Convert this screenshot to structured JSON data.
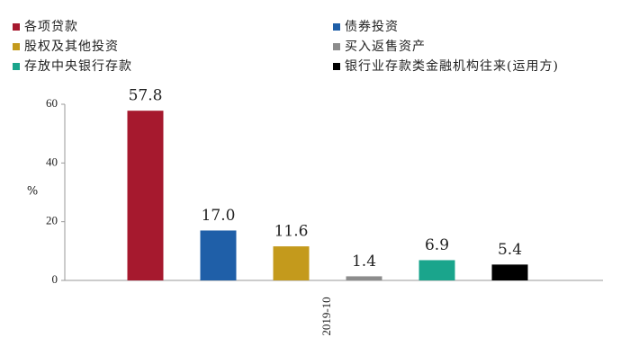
{
  "chart_data": {
    "type": "bar",
    "categories": [
      "2019-10"
    ],
    "series": [
      {
        "name": "各项贷款",
        "color": "#a6192e",
        "values": [
          57.8
        ]
      },
      {
        "name": "债券投资",
        "color": "#1f5fa8",
        "values": [
          17.0
        ],
        "value_labels": [
          "17.0"
        ]
      },
      {
        "name": "股权及其他投资",
        "color": "#c49a1c",
        "values": [
          11.6
        ]
      },
      {
        "name": "买入返售资产",
        "color": "#8c8c8c",
        "values": [
          1.4
        ]
      },
      {
        "name": "存放中央银行存款",
        "color": "#1aa58c",
        "values": [
          6.9
        ]
      },
      {
        "name": "银行业存款类金融机构往来(运用方)",
        "color": "#000000",
        "values": [
          5.4
        ]
      }
    ],
    "ylabel": "%",
    "ylim": [
      0,
      60
    ],
    "yticks": [
      0,
      20,
      40,
      60
    ]
  }
}
